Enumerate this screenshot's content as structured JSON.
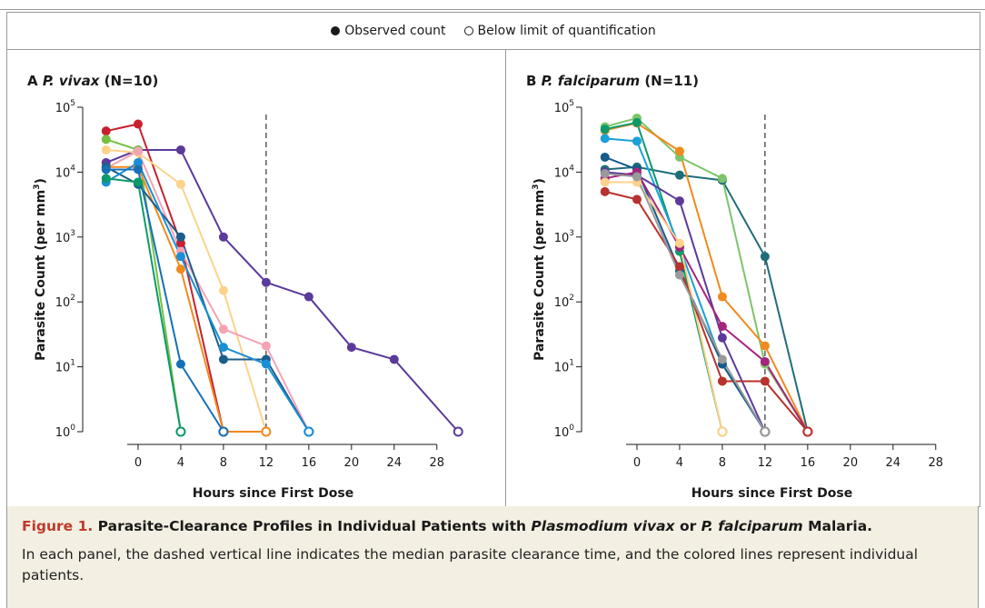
{
  "legend": {
    "observed": "Observed count",
    "below": "Below limit of quantification"
  },
  "caption": {
    "label": "Figure 1.",
    "title_pre": "Parasite-Clearance Profiles in Individual Patients with ",
    "title_italic1": "Plasmodium vivax",
    "title_mid": " or ",
    "title_italic2": "P. falciparum",
    "title_post": " Malaria.",
    "body": "In each panel, the dashed vertical line indicates the median parasite clearance time, and the colored lines represent individual patients."
  },
  "colors": {
    "label_red": "#c0392b",
    "caption_bg": "#f3efe2"
  },
  "chart_data": [
    {
      "type": "line",
      "panel_letter": "A",
      "title_italic": "P. vivax",
      "title_rest": "(N=10)",
      "xlabel": "Hours since First Dose",
      "ylabel": "Parasite Count (per mm³)",
      "ylabel_main": "Parasite Count (per mm",
      "ylabel_sup": "3",
      "ylabel_end": ")",
      "yscale": "log",
      "ylim": [
        1,
        100000
      ],
      "xlim": [
        -4,
        31
      ],
      "xticks": [
        0,
        4,
        8,
        12,
        16,
        20,
        24,
        28
      ],
      "yticks": [
        {
          "v": 1,
          "base": "10",
          "exp": "0"
        },
        {
          "v": 10,
          "base": "10",
          "exp": "1"
        },
        {
          "v": 100,
          "base": "10",
          "exp": "2"
        },
        {
          "v": 1000,
          "base": "10",
          "exp": "3"
        },
        {
          "v": 10000,
          "base": "10",
          "exp": "4"
        },
        {
          "v": 100000,
          "base": "10",
          "exp": "5"
        }
      ],
      "median_line_x": 12,
      "series": [
        {
          "color": "#5b3a9b",
          "points": [
            [
              -3,
              14000
            ],
            [
              0,
              22000
            ],
            [
              4,
              22000
            ],
            [
              8,
              1000
            ],
            [
              12,
              200
            ],
            [
              16,
              120
            ],
            [
              20,
              20
            ],
            [
              24,
              13
            ],
            [
              30,
              1,
              "open"
            ]
          ]
        },
        {
          "color": "#c8202e",
          "points": [
            [
              -3,
              43000
            ],
            [
              0,
              55000
            ],
            [
              4,
              800
            ],
            [
              8,
              1,
              "open"
            ]
          ]
        },
        {
          "color": "#76c043",
          "points": [
            [
              -3,
              32000
            ],
            [
              0,
              22000
            ],
            [
              4,
              1,
              "open"
            ]
          ]
        },
        {
          "color": "#fdd28a",
          "points": [
            [
              -3,
              22000
            ],
            [
              0,
              20000
            ],
            [
              4,
              6500
            ],
            [
              8,
              150
            ],
            [
              12,
              1,
              "open"
            ]
          ]
        },
        {
          "color": "#f4a3b5",
          "points": [
            [
              -3,
              11500
            ],
            [
              0,
              21000
            ],
            [
              4,
              600
            ],
            [
              8,
              38
            ],
            [
              12,
              21
            ],
            [
              16,
              1,
              "open"
            ]
          ]
        },
        {
          "color": "#f08a1e",
          "points": [
            [
              -3,
              12000
            ],
            [
              0,
              12000
            ],
            [
              4,
              320
            ],
            [
              8,
              1
            ],
            [
              12,
              1,
              "open"
            ]
          ]
        },
        {
          "color": "#1b5e8c",
          "points": [
            [
              -3,
              12000
            ],
            [
              0,
              6500
            ],
            [
              4,
              1000
            ],
            [
              8,
              13
            ],
            [
              12,
              13
            ],
            [
              16,
              1,
              "open"
            ]
          ]
        },
        {
          "color": "#1a8fd6",
          "points": [
            [
              -3,
              7000
            ],
            [
              0,
              14000
            ],
            [
              4,
              500
            ],
            [
              8,
              20
            ],
            [
              12,
              11
            ],
            [
              16,
              1,
              "open"
            ]
          ]
        },
        {
          "color": "#0c9a6a",
          "points": [
            [
              -3,
              8000
            ],
            [
              0,
              7000
            ],
            [
              4,
              1,
              "open"
            ]
          ]
        },
        {
          "color": "#1570b8",
          "points": [
            [
              -3,
              11000
            ],
            [
              0,
              11000
            ],
            [
              4,
              11
            ],
            [
              8,
              1,
              "open"
            ]
          ]
        }
      ]
    },
    {
      "type": "line",
      "panel_letter": "B",
      "title_italic": "P. falciparum",
      "title_rest": "(N=11)",
      "xlabel": "Hours since First Dose",
      "ylabel": "Parasite Count (per mm³)",
      "ylabel_main": "Parasite Count (per mm",
      "ylabel_sup": "3",
      "ylabel_end": ")",
      "yscale": "log",
      "ylim": [
        1,
        100000
      ],
      "xlim": [
        -4,
        31
      ],
      "xticks": [
        0,
        4,
        8,
        12,
        16,
        20,
        24,
        28
      ],
      "yticks": [
        {
          "v": 1,
          "base": "10",
          "exp": "0"
        },
        {
          "v": 10,
          "base": "10",
          "exp": "1"
        },
        {
          "v": 100,
          "base": "10",
          "exp": "2"
        },
        {
          "v": 1000,
          "base": "10",
          "exp": "3"
        },
        {
          "v": 10000,
          "base": "10",
          "exp": "4"
        },
        {
          "v": 100000,
          "base": "10",
          "exp": "5"
        }
      ],
      "median_line_x": 12,
      "series": [
        {
          "color": "#1f6d7a",
          "points": [
            [
              -3,
              11000
            ],
            [
              0,
              12000
            ],
            [
              4,
              9000
            ],
            [
              8,
              7500
            ],
            [
              12,
              500
            ],
            [
              16,
              1,
              "open"
            ]
          ]
        },
        {
          "color": "#7cc46a",
          "points": [
            [
              -3,
              50000
            ],
            [
              0,
              68000
            ],
            [
              4,
              17000
            ],
            [
              8,
              8000
            ],
            [
              12,
              11
            ],
            [
              16,
              1,
              "open"
            ]
          ]
        },
        {
          "color": "#f08a1e",
          "points": [
            [
              -3,
              44000
            ],
            [
              0,
              57000
            ],
            [
              4,
              21000
            ],
            [
              8,
              120
            ],
            [
              12,
              21
            ],
            [
              16,
              1,
              "open"
            ]
          ]
        },
        {
          "color": "#0c9a6a",
          "points": [
            [
              -3,
              46000
            ],
            [
              0,
              58000
            ],
            [
              4,
              600
            ],
            [
              8,
              1,
              "open"
            ]
          ]
        },
        {
          "color": "#1aa0d8",
          "points": [
            [
              -3,
              33000
            ],
            [
              0,
              30000
            ],
            [
              4,
              700
            ],
            [
              8,
              11
            ],
            [
              12,
              1,
              "open"
            ]
          ]
        },
        {
          "color": "#155b8c",
          "points": [
            [
              -3,
              17000
            ],
            [
              0,
              11000
            ],
            [
              4,
              300
            ],
            [
              8,
              11
            ],
            [
              12,
              1,
              "open"
            ]
          ]
        },
        {
          "color": "#5b3a9b",
          "points": [
            [
              -3,
              10000
            ],
            [
              0,
              9000
            ],
            [
              4,
              3600
            ],
            [
              8,
              28
            ],
            [
              12,
              1,
              "open"
            ]
          ]
        },
        {
          "color": "#a3257c",
          "points": [
            [
              -3,
              8000
            ],
            [
              0,
              10000
            ],
            [
              4,
              700
            ],
            [
              8,
              42
            ],
            [
              12,
              12
            ],
            [
              16,
              1,
              "open"
            ]
          ]
        },
        {
          "color": "#fdd28a",
          "points": [
            [
              -3,
              7000
            ],
            [
              0,
              7000
            ],
            [
              4,
              800
            ],
            [
              8,
              1,
              "open"
            ]
          ]
        },
        {
          "color": "#b8322e",
          "points": [
            [
              -3,
              5000
            ],
            [
              0,
              3800
            ],
            [
              4,
              350
            ],
            [
              8,
              6
            ],
            [
              12,
              6
            ],
            [
              16,
              1,
              "open"
            ]
          ]
        },
        {
          "color": "#9a9a9a",
          "points": [
            [
              -3,
              9500
            ],
            [
              0,
              8500
            ],
            [
              4,
              260
            ],
            [
              8,
              13
            ],
            [
              12,
              1,
              "open"
            ]
          ]
        }
      ]
    }
  ]
}
